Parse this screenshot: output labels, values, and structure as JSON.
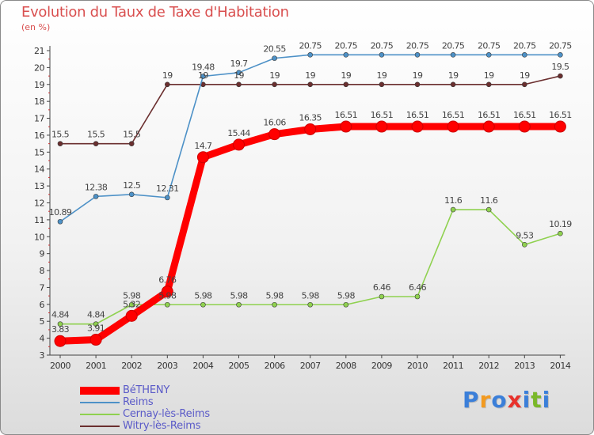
{
  "header": {
    "title": "Evolution du Taux de Taxe d'Habitation",
    "unit": "(en %)"
  },
  "brand": {
    "name": "Proxiti",
    "letters": [
      "P",
      "r",
      "o",
      "x",
      "i",
      "t",
      "i"
    ],
    "colors": [
      "#3b7fd9",
      "#f39a1f",
      "#3b7fd9",
      "#e8322c",
      "#3b7fd9",
      "#7ab829",
      "#3b7fd9"
    ]
  },
  "chart_data": {
    "type": "line",
    "title": "Evolution du Taux de Taxe d'Habitation",
    "ylabel": "(en %)",
    "xlabel": "",
    "x": [
      "2000",
      "2001",
      "2002",
      "2003",
      "2004",
      "2005",
      "2006",
      "2007",
      "2008",
      "2009",
      "2010",
      "2011",
      "2012",
      "2013",
      "2014"
    ],
    "ylim": [
      3,
      21
    ],
    "yticks": [
      "3",
      "4",
      "5",
      "6",
      "7",
      "8",
      "9",
      "10",
      "11",
      "12",
      "13",
      "14",
      "15",
      "16",
      "17",
      "18",
      "19",
      "20",
      "21"
    ],
    "grid": false,
    "legend_position": "bottom-left",
    "series": [
      {
        "name": "BéTHENY",
        "color": "#ff0000",
        "emphasis": true,
        "values": [
          3.83,
          3.91,
          5.32,
          6.76,
          14.7,
          15.44,
          16.06,
          16.35,
          16.51,
          16.51,
          16.51,
          16.51,
          16.51,
          16.51,
          16.51
        ],
        "labels": [
          "3.83",
          "3.91",
          "5.32",
          "6.76",
          "14.7",
          "15.44",
          "16.06",
          "16.35",
          "16.51",
          "16.51",
          "16.51",
          "16.51",
          "16.51",
          "16.51",
          "16.51"
        ]
      },
      {
        "name": "Reims",
        "color": "#4d91c7",
        "values": [
          10.89,
          12.38,
          12.5,
          12.31,
          19.48,
          19.7,
          20.55,
          20.75,
          20.75,
          20.75,
          20.75,
          20.75,
          20.75,
          20.75,
          20.75
        ],
        "labels": [
          "10.89",
          "12.38",
          "12.5",
          "12.31",
          "19.48",
          "19.7",
          "20.55",
          "20.75",
          "20.75",
          "20.75",
          "20.75",
          "20.75",
          "20.75",
          "20.75",
          "20.75"
        ]
      },
      {
        "name": "Cernay-lès-Reims",
        "color": "#8fd14f",
        "values": [
          4.84,
          4.84,
          5.98,
          5.98,
          5.98,
          5.98,
          5.98,
          5.98,
          5.98,
          6.46,
          6.46,
          11.6,
          11.6,
          9.53,
          10.19
        ],
        "labels": [
          "4.84",
          "4.84",
          "5.98",
          "5.98",
          "5.98",
          "5.98",
          "5.98",
          "5.98",
          "5.98",
          "6.46",
          "6.46",
          "11.6",
          "11.6",
          "9.53",
          "10.19"
        ]
      },
      {
        "name": "Witry-lès-Reims",
        "color": "#6b2f2f",
        "values": [
          15.5,
          15.5,
          15.5,
          19,
          19,
          19,
          19,
          19,
          19,
          19,
          19,
          19,
          19,
          19,
          19.5
        ],
        "labels": [
          "15.5",
          "15.5",
          "15.5",
          "19",
          "19",
          "19",
          "19",
          "19",
          "19",
          "19",
          "19",
          "19",
          "19",
          "19",
          "19.5"
        ]
      }
    ]
  }
}
